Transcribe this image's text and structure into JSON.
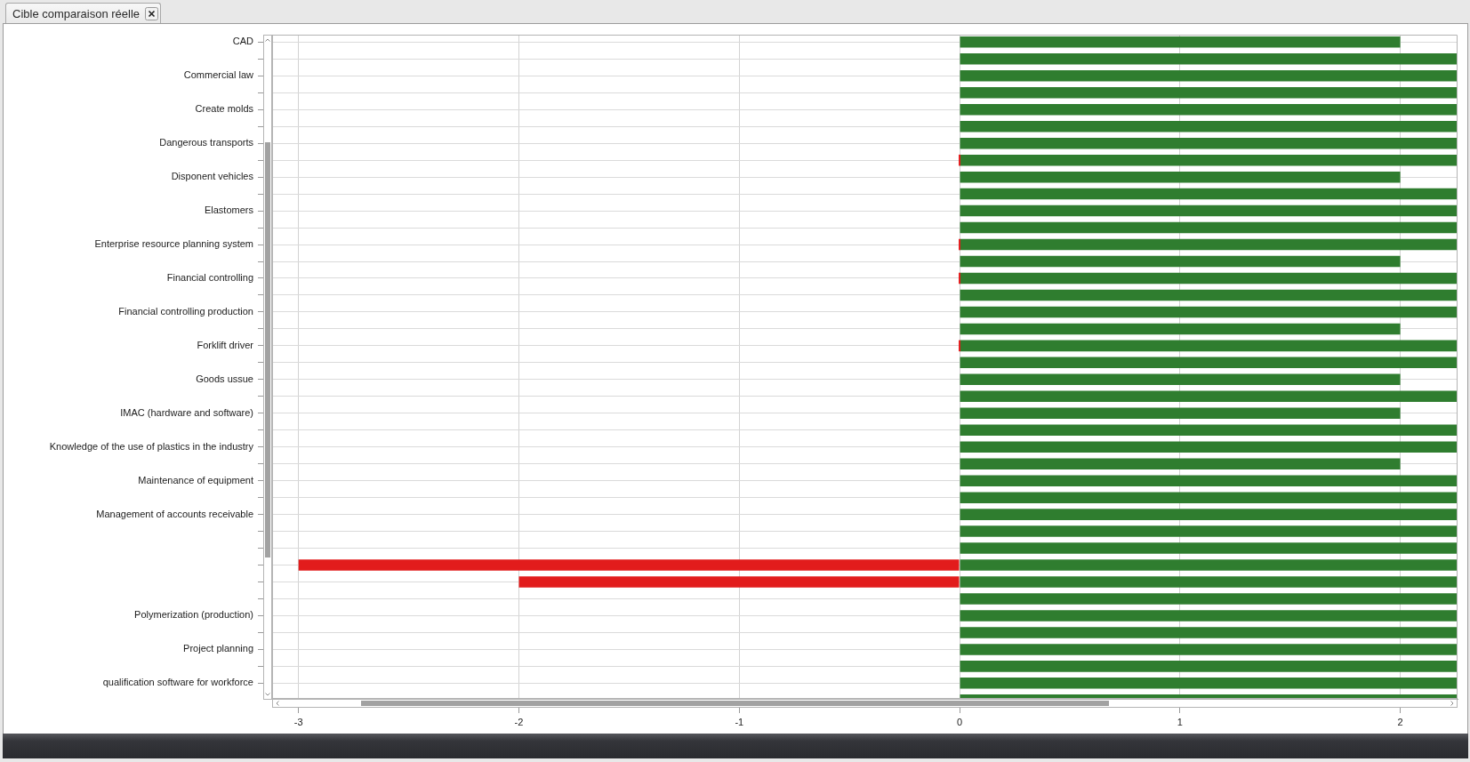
{
  "chart_data": {
    "type": "bar",
    "orientation": "horizontal",
    "stacked": true,
    "title": "Cible comparaison réelle",
    "categories": [
      "CAD",
      null,
      "Commercial law",
      null,
      "Create molds",
      null,
      "Dangerous transports",
      null,
      "Disponent vehicles",
      null,
      "Elastomers",
      null,
      "Enterprise resource planning system",
      null,
      "Financial controlling",
      null,
      "Financial controlling production",
      null,
      "Forklift driver",
      null,
      "Goods ussue",
      null,
      "IMAC (hardware and software)",
      null,
      "Knowledge of the use of plastics in the industry",
      null,
      "Maintenance of equipment",
      null,
      "Management of accounts receivable",
      null,
      null,
      null,
      null,
      null,
      "Polymerization (production)",
      null,
      "Project planning",
      null,
      "qualification software for workforce",
      null
    ],
    "series": [
      {
        "color": "#e21c1c",
        "values": [
          null,
          null,
          null,
          null,
          null,
          null,
          null,
          0,
          null,
          null,
          null,
          null,
          0,
          null,
          0,
          null,
          null,
          null,
          0,
          null,
          null,
          null,
          null,
          null,
          null,
          null,
          null,
          null,
          null,
          null,
          null,
          -3,
          -2,
          null,
          null,
          null,
          null,
          null,
          null,
          null
        ]
      },
      {
        "color": "#2f7d2f",
        "values": [
          2,
          2.26,
          2.26,
          2.26,
          2.26,
          2.26,
          2.26,
          2.26,
          2,
          2.26,
          2.26,
          2.26,
          2.26,
          2,
          2.26,
          2.26,
          2.26,
          2,
          2.26,
          2.26,
          2,
          2.26,
          2,
          2.26,
          2.26,
          2,
          2.26,
          2.26,
          2.26,
          2.26,
          2.26,
          2.26,
          2.26,
          2.26,
          2.26,
          2.26,
          2.26,
          2.26,
          2.26,
          2.26
        ]
      }
    ],
    "xlim": [
      -3.12,
      2.26
    ],
    "xticks": [
      -3,
      -2,
      -1,
      0,
      1,
      2
    ],
    "grid": true
  }
}
